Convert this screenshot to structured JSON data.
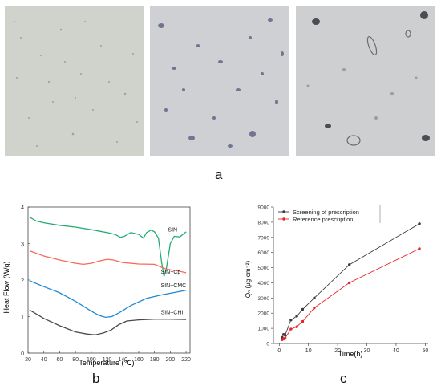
{
  "labels": {
    "a": "a",
    "b": "b",
    "c": "c"
  },
  "colors": {
    "sin": "#23ad73",
    "cp": "#f26b5b",
    "cmc": "#1f8ad6",
    "chi": "#4a4a4a",
    "screening": "#3c3c3c",
    "reference": "#e8232a"
  },
  "chart_data": [
    {
      "type": "line",
      "id": "dsc",
      "xlabel": "Temperature (℃)",
      "ylabel": "Heat Flow (W/g)",
      "xlim": [
        20,
        225
      ],
      "ylim": [
        0,
        4
      ],
      "xticks": [
        20,
        40,
        60,
        80,
        100,
        120,
        140,
        160,
        180,
        200,
        220
      ],
      "yticks": [
        0,
        1,
        2,
        3,
        4
      ],
      "series": [
        {
          "name": "SIN",
          "color": "#23ad73",
          "points": [
            [
              22,
              3.72
            ],
            [
              30,
              3.62
            ],
            [
              40,
              3.57
            ],
            [
              60,
              3.5
            ],
            [
              80,
              3.45
            ],
            [
              100,
              3.38
            ],
            [
              120,
              3.3
            ],
            [
              130,
              3.25
            ],
            [
              137,
              3.17
            ],
            [
              142,
              3.2
            ],
            [
              150,
              3.3
            ],
            [
              160,
              3.25
            ],
            [
              166,
              3.15
            ],
            [
              170,
              3.3
            ],
            [
              176,
              3.37
            ],
            [
              180,
              3.32
            ],
            [
              185,
              3.15
            ],
            [
              189,
              2.5
            ],
            [
              192,
              2.1
            ],
            [
              195,
              2.3
            ],
            [
              200,
              3.0
            ],
            [
              205,
              3.2
            ],
            [
              212,
              3.18
            ],
            [
              220,
              3.32
            ]
          ]
        },
        {
          "name": "SIN+Cp",
          "color": "#f26b5b",
          "points": [
            [
              22,
              2.8
            ],
            [
              40,
              2.66
            ],
            [
              60,
              2.55
            ],
            [
              80,
              2.46
            ],
            [
              90,
              2.43
            ],
            [
              100,
              2.46
            ],
            [
              110,
              2.52
            ],
            [
              120,
              2.57
            ],
            [
              128,
              2.55
            ],
            [
              140,
              2.48
            ],
            [
              160,
              2.44
            ],
            [
              180,
              2.43
            ],
            [
              190,
              2.34
            ],
            [
              195,
              2.3
            ],
            [
              210,
              2.25
            ],
            [
              220,
              2.2
            ]
          ]
        },
        {
          "name": "SIN+CMC",
          "color": "#1f8ad6",
          "points": [
            [
              22,
              1.98
            ],
            [
              40,
              1.82
            ],
            [
              60,
              1.65
            ],
            [
              80,
              1.42
            ],
            [
              100,
              1.15
            ],
            [
              110,
              1.03
            ],
            [
              118,
              0.98
            ],
            [
              126,
              1.0
            ],
            [
              135,
              1.1
            ],
            [
              150,
              1.3
            ],
            [
              170,
              1.5
            ],
            [
              190,
              1.6
            ],
            [
              210,
              1.68
            ],
            [
              220,
              1.72
            ]
          ]
        },
        {
          "name": "SIN+CHI",
          "color": "#4a4a4a",
          "points": [
            [
              22,
              1.18
            ],
            [
              40,
              0.95
            ],
            [
              60,
              0.75
            ],
            [
              80,
              0.58
            ],
            [
              95,
              0.52
            ],
            [
              105,
              0.5
            ],
            [
              115,
              0.55
            ],
            [
              125,
              0.63
            ],
            [
              135,
              0.78
            ],
            [
              145,
              0.88
            ],
            [
              160,
              0.91
            ],
            [
              180,
              0.93
            ],
            [
              200,
              0.93
            ],
            [
              220,
              0.92
            ]
          ]
        }
      ],
      "annotations": [
        {
          "text": "SIN",
          "x": 197,
          "y": 3.33
        },
        {
          "text": "SIN+Cp",
          "x": 188,
          "y": 2.18
        },
        {
          "text": "SIN+CMC",
          "x": 188,
          "y": 1.8
        },
        {
          "text": "SIN+CHI",
          "x": 188,
          "y": 1.07
        }
      ]
    },
    {
      "type": "line",
      "id": "release",
      "xlabel": "Time(h)",
      "ylabel": "Qₙ (μg·cm⁻²)",
      "xlim": [
        -2,
        51
      ],
      "ylim": [
        0,
        9000
      ],
      "xticks": [
        0,
        10,
        20,
        30,
        40,
        50
      ],
      "yticks": [
        0,
        1000,
        2000,
        3000,
        4000,
        5000,
        6000,
        7000,
        8000,
        9000
      ],
      "series": [
        {
          "name": "Screening of prescription",
          "color": "#3c3c3c",
          "x": [
            1,
            1.5,
            2,
            4,
            6,
            8,
            12,
            24,
            48
          ],
          "y": [
            400,
            600,
            550,
            1550,
            1800,
            2250,
            3000,
            5200,
            7900
          ]
        },
        {
          "name": "Reference prescription",
          "color": "#e8232a",
          "x": [
            1,
            1.5,
            2,
            4,
            6,
            8,
            12,
            24,
            48
          ],
          "y": [
            250,
            300,
            350,
            950,
            1100,
            1450,
            2350,
            4000,
            6250
          ]
        }
      ],
      "legend": "top-left"
    }
  ]
}
